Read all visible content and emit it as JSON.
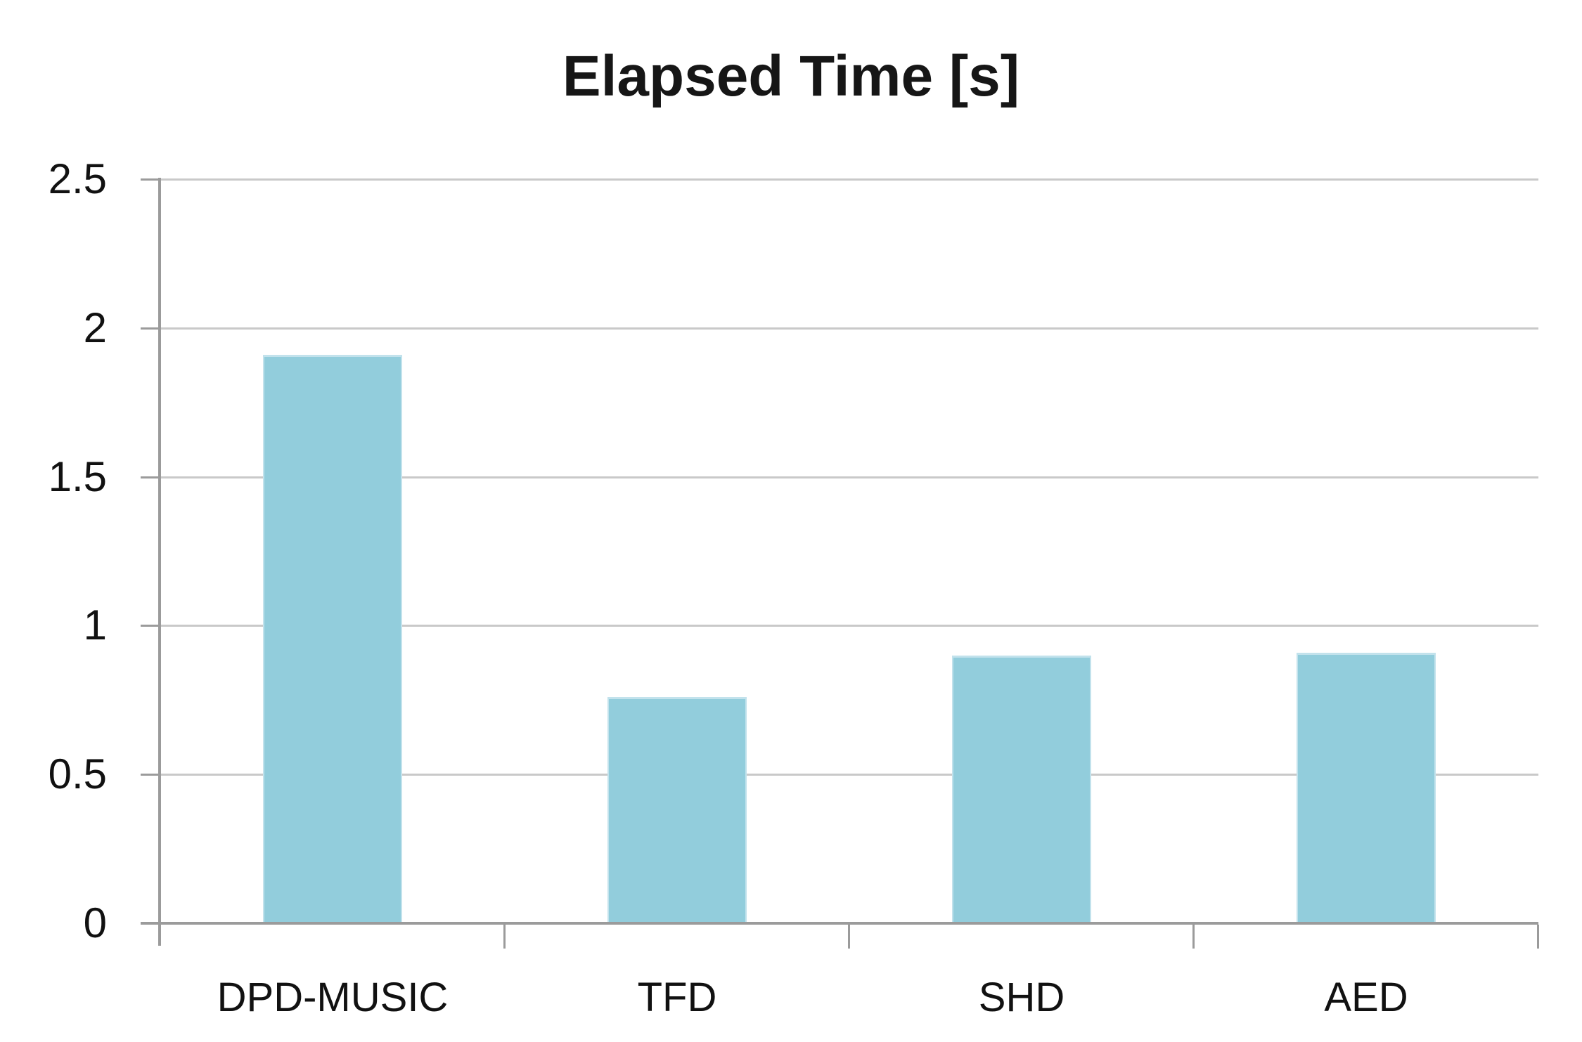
{
  "chart_data": {
    "type": "bar",
    "title": "Elapsed Time [s]",
    "categories": [
      "DPD-MUSIC",
      "TFD",
      "SHD",
      "AED"
    ],
    "values": [
      1.91,
      0.76,
      0.9,
      0.91
    ],
    "xlabel": "",
    "ylabel": "",
    "ylim": [
      0,
      2.5
    ],
    "ytick_step": 0.5,
    "ytick_labels": [
      "0",
      "0.5",
      "1",
      "1.5",
      "2",
      "2.5"
    ],
    "grid": true,
    "legend": "none",
    "colors": {
      "bar_fill": "#92CDDC",
      "bar_edge": "#C2E2EC",
      "gridline": "#C9C9C9",
      "axis": "#9B9B9B",
      "text": "#111111",
      "title_text": "#161616",
      "background": "#FFFFFF"
    }
  }
}
